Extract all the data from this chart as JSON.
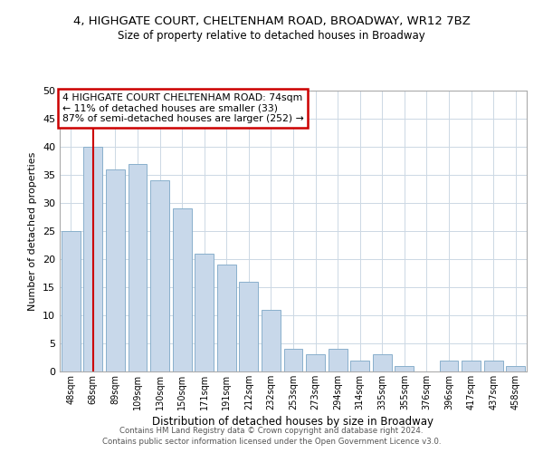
{
  "title": "4, HIGHGATE COURT, CHELTENHAM ROAD, BROADWAY, WR12 7BZ",
  "subtitle": "Size of property relative to detached houses in Broadway",
  "xlabel": "Distribution of detached houses by size in Broadway",
  "ylabel": "Number of detached properties",
  "bar_labels": [
    "48sqm",
    "68sqm",
    "89sqm",
    "109sqm",
    "130sqm",
    "150sqm",
    "171sqm",
    "191sqm",
    "212sqm",
    "232sqm",
    "253sqm",
    "273sqm",
    "294sqm",
    "314sqm",
    "335sqm",
    "355sqm",
    "376sqm",
    "396sqm",
    "417sqm",
    "437sqm",
    "458sqm"
  ],
  "bar_values": [
    25,
    40,
    36,
    37,
    34,
    29,
    21,
    19,
    16,
    11,
    4,
    3,
    4,
    2,
    3,
    1,
    0,
    2,
    2,
    2,
    1
  ],
  "bar_color": "#c8d8ea",
  "bar_edge_color": "#8ab0cc",
  "ylim": [
    0,
    50
  ],
  "yticks": [
    0,
    5,
    10,
    15,
    20,
    25,
    30,
    35,
    40,
    45,
    50
  ],
  "vline_x": 1,
  "vline_color": "#cc0000",
  "annotation_title": "4 HIGHGATE COURT CHELTENHAM ROAD: 74sqm",
  "annotation_line1": "← 11% of detached houses are smaller (33)",
  "annotation_line2": "87% of semi-detached houses are larger (252) →",
  "annotation_box_color": "#ffffff",
  "annotation_box_edge": "#cc0000",
  "footer1": "Contains HM Land Registry data © Crown copyright and database right 2024.",
  "footer2": "Contains public sector information licensed under the Open Government Licence v3.0."
}
